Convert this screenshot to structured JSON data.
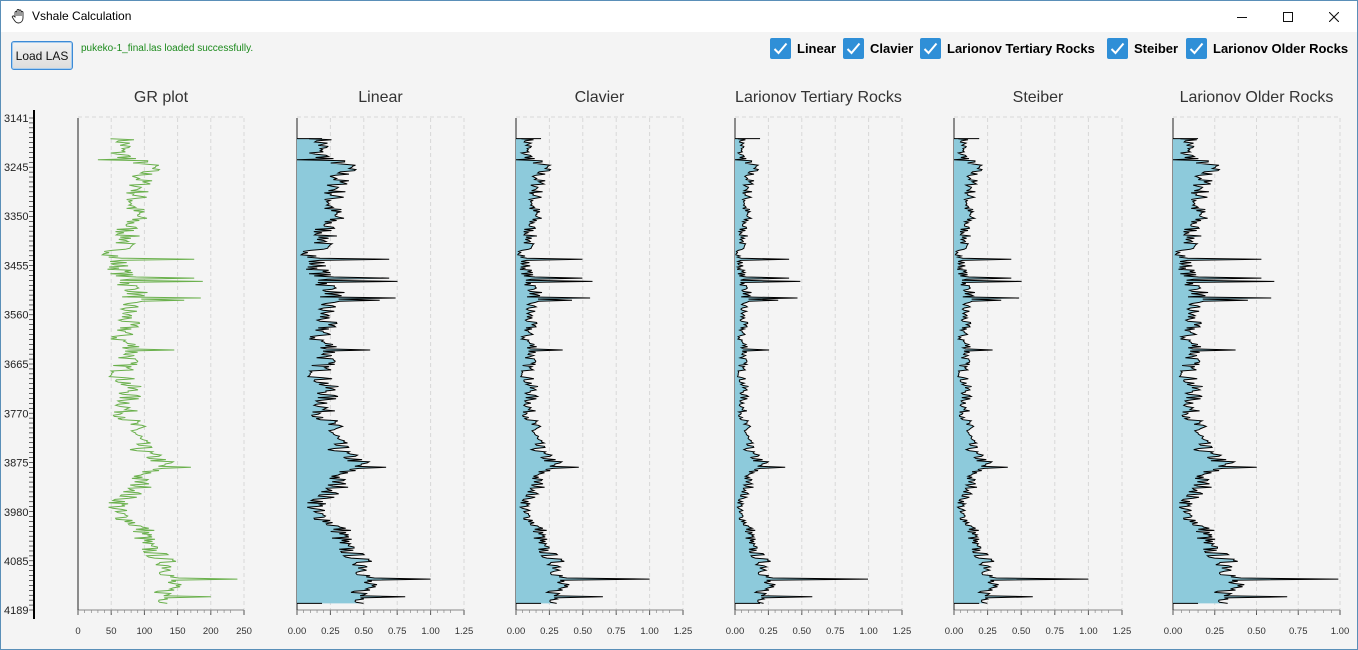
{
  "window": {
    "title": "Vshale Calculation",
    "controls": [
      "minimize",
      "maximize",
      "close"
    ]
  },
  "toolbar": {
    "load_button": "Load LAS",
    "status": "pukeko-1_final.las loaded successfully.",
    "status_color": "#1c8a1c",
    "checkboxes": [
      {
        "label": "Linear",
        "checked": true
      },
      {
        "label": "Clavier",
        "checked": true
      },
      {
        "label": "Larionov Tertiary Rocks",
        "checked": true
      },
      {
        "label": "Steiber",
        "checked": true
      },
      {
        "label": "Larionov Older Rocks",
        "checked": true
      }
    ],
    "checkbox_color": "#2f8fd7"
  },
  "chart_data": {
    "depth_axis": {
      "ticks": [
        "3141",
        "3245",
        "3350",
        "3455",
        "3560",
        "3665",
        "3770",
        "3875",
        "3980",
        "4085",
        "4189"
      ],
      "range": [
        3141,
        4189
      ],
      "inverted": true
    },
    "panels": [
      {
        "title": "GR plot",
        "type": "line",
        "xlim": [
          0,
          250
        ],
        "xticks": [
          "0",
          "50",
          "100",
          "150",
          "200",
          "250"
        ],
        "line_color": "#6ab04c",
        "fill": false,
        "profile_depths": [
          3185,
          3200,
          3215,
          3245,
          3265,
          3280,
          3300,
          3330,
          3350,
          3380,
          3400,
          3430,
          3455,
          3480,
          3495,
          3510,
          3530,
          3560,
          3590,
          3610,
          3630,
          3665,
          3690,
          3720,
          3740,
          3770,
          3800,
          3830,
          3850,
          3875,
          3890,
          3910,
          3930,
          3950,
          3980,
          4000,
          4020,
          4050,
          4085,
          4100,
          4130,
          4155,
          4175
        ],
        "profile_values": [
          68,
          70,
          58,
          112,
          95,
          95,
          90,
          82,
          90,
          72,
          75,
          55,
          60,
          70,
          75,
          90,
          80,
          72,
          75,
          60,
          85,
          72,
          65,
          80,
          75,
          70,
          85,
          90,
          95,
          130,
          110,
          90,
          95,
          70,
          55,
          80,
          100,
          100,
          130,
          140,
          140,
          130,
          140
        ],
        "spikes": [
          {
            "depth": 3230,
            "value": 150
          },
          {
            "depth": 3230,
            "value": 30
          },
          {
            "depth": 3442,
            "value": 175
          },
          {
            "depth": 3490,
            "value": 188
          },
          {
            "depth": 3482,
            "value": 175
          },
          {
            "depth": 3525,
            "value": 185
          },
          {
            "depth": 3530,
            "value": 160
          },
          {
            "depth": 3635,
            "value": 145
          },
          {
            "depth": 3885,
            "value": 170
          },
          {
            "depth": 4122,
            "value": 240
          },
          {
            "depth": 4160,
            "value": 200
          }
        ]
      },
      {
        "title": "Linear",
        "type": "area",
        "xlim": [
          0,
          1.25
        ],
        "xticks": [
          "0.00",
          "0.25",
          "0.50",
          "0.75",
          "1.00",
          "1.25"
        ],
        "fill_color": "#8dcadb",
        "line_color": "#000000",
        "max_value": 1.0
      },
      {
        "title": "Clavier",
        "type": "area",
        "xlim": [
          0,
          1.25
        ],
        "xticks": [
          "0.00",
          "0.25",
          "0.50",
          "0.75",
          "1.00",
          "1.25"
        ],
        "fill_color": "#8dcadb",
        "line_color": "#000000",
        "max_value": 1.0
      },
      {
        "title": "Larionov Tertiary Rocks",
        "type": "area",
        "xlim": [
          0,
          1.25
        ],
        "xticks": [
          "0.00",
          "0.25",
          "0.50",
          "0.75",
          "1.00",
          "1.25"
        ],
        "fill_color": "#8dcadb",
        "line_color": "#000000",
        "max_value": 1.0
      },
      {
        "title": "Steiber",
        "type": "area",
        "xlim": [
          0,
          1.25
        ],
        "xticks": [
          "0.00",
          "0.25",
          "0.50",
          "0.75",
          "1.00",
          "1.25"
        ],
        "fill_color": "#8dcadb",
        "line_color": "#000000",
        "max_value": 1.0
      },
      {
        "title": "Larionov Older Rocks",
        "type": "area",
        "xlim": [
          0,
          1.0
        ],
        "xticks": [
          "0.00",
          "0.25",
          "0.50",
          "0.75",
          "1.00"
        ],
        "fill_color": "#8dcadb",
        "line_color": "#000000",
        "max_value": 1.0
      }
    ],
    "grid": true
  }
}
